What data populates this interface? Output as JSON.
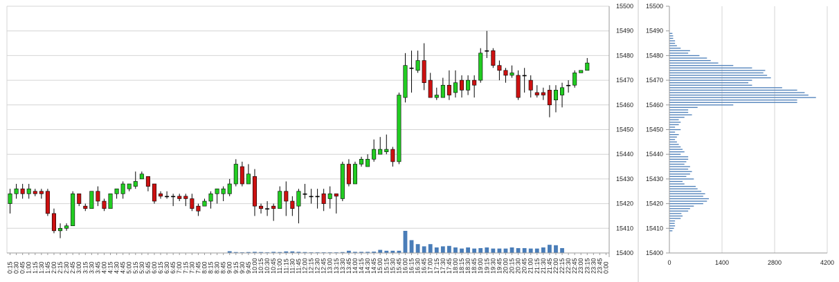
{
  "chart_data": [
    {
      "type": "candlestick",
      "title": "",
      "ylim": [
        15400,
        15500
      ],
      "y_ticks": [
        15400,
        15410,
        15420,
        15430,
        15440,
        15450,
        15460,
        15470,
        15480,
        15490,
        15500
      ],
      "grid": true,
      "colors": {
        "up": "#22cc22",
        "down": "#cc1111",
        "volume": "#4a7db8",
        "grid": "#d4d4d4"
      },
      "x_labels": [
        "0:15",
        "0:30",
        "0:45",
        "1:00",
        "1:15",
        "1:30",
        "1:45",
        "2:00",
        "2:15",
        "2:30",
        "2:45",
        "3:00",
        "3:15",
        "3:30",
        "3:45",
        "4:00",
        "4:15",
        "4:30",
        "4:45",
        "5:00",
        "5:15",
        "5:30",
        "5:45",
        "6:00",
        "6:15",
        "6:30",
        "6:45",
        "7:00",
        "7:15",
        "7:30",
        "7:45",
        "8:00",
        "8:15",
        "8:30",
        "8:45",
        "9:00",
        "9:15",
        "9:30",
        "9:45",
        "10:00",
        "10:15",
        "10:30",
        "10:45",
        "11:00",
        "11:15",
        "11:30",
        "11:45",
        "12:00",
        "12:15",
        "12:30",
        "12:45",
        "13:00",
        "13:15",
        "13:30",
        "13:45",
        "14:00",
        "14:15",
        "14:30",
        "14:45",
        "15:00",
        "15:15",
        "15:30",
        "15:45",
        "16:00",
        "16:15",
        "16:30",
        "16:45",
        "17:00",
        "17:15",
        "17:30",
        "17:45",
        "18:00",
        "18:15",
        "18:30",
        "18:45",
        "19:00",
        "19:15",
        "19:30",
        "19:45",
        "20:00",
        "20:15",
        "20:30",
        "20:45",
        "21:00",
        "21:15",
        "21:30",
        "21:45",
        "22:00",
        "22:15",
        "22:30",
        "22:45",
        "23:00",
        "23:15",
        "23:30",
        "23:45",
        "0:00"
      ],
      "candles": [
        [
          15420,
          15424,
          15416,
          15426
        ],
        [
          15424,
          15426,
          15422,
          15428
        ],
        [
          15426,
          15424,
          15422,
          15428
        ],
        [
          15424,
          15426,
          15422,
          15428
        ],
        [
          15425,
          15424,
          15423,
          15426
        ],
        [
          15425,
          15424,
          15422,
          15426
        ],
        [
          15425,
          15416,
          15415,
          15426
        ],
        [
          15416,
          15409,
          15408,
          15418
        ],
        [
          15409,
          15410,
          15406,
          15412
        ],
        [
          15410,
          15411,
          15409,
          15412
        ],
        [
          15411,
          15424,
          15411,
          15425
        ],
        [
          15424,
          15420,
          15419,
          15424
        ],
        [
          15419,
          15418,
          15417,
          15420
        ],
        [
          15418,
          15425,
          15418,
          15425
        ],
        [
          15425,
          15421,
          15419,
          15427
        ],
        [
          15421,
          15418,
          15417,
          15422
        ],
        [
          15418,
          15424,
          15418,
          15424
        ],
        [
          15424,
          15426,
          15422,
          15426
        ],
        [
          15424,
          15428,
          15422,
          15429
        ],
        [
          15426,
          15428,
          15425,
          15428
        ],
        [
          15427,
          15429,
          15426,
          15433
        ],
        [
          15430,
          15432,
          15430,
          15433
        ],
        [
          15431,
          15427,
          15425,
          15431
        ],
        [
          15428,
          15421,
          15420,
          15428
        ],
        [
          15424,
          15423,
          15422,
          15425
        ],
        [
          15423,
          15423,
          15422,
          15425
        ],
        [
          15423,
          15423,
          15419,
          15424
        ],
        [
          15423,
          15422,
          15421,
          15424
        ],
        [
          15423,
          15422,
          15419,
          15424
        ],
        [
          15422,
          15418,
          15417,
          15424
        ],
        [
          15419,
          15417,
          15415,
          15420
        ],
        [
          15419,
          15421,
          15419,
          15422
        ],
        [
          15421,
          15424,
          15418,
          15425
        ],
        [
          15424,
          15426,
          15420,
          15426
        ],
        [
          15424,
          15426,
          15421,
          15427
        ],
        [
          15424,
          15428,
          15423,
          15430
        ],
        [
          15428,
          15436,
          15427,
          15438
        ],
        [
          15435,
          15428,
          15427,
          15437
        ],
        [
          15428,
          15432,
          15428,
          15436
        ],
        [
          15431,
          15419,
          15415,
          15434
        ],
        [
          15419,
          15418,
          15416,
          15420
        ],
        [
          15418,
          15418,
          15415,
          15421
        ],
        [
          15419,
          15418,
          15413,
          15420
        ],
        [
          15418,
          15425,
          15418,
          15427
        ],
        [
          15425,
          15421,
          15415,
          15429
        ],
        [
          15421,
          15418,
          15415,
          15423
        ],
        [
          15419,
          15425,
          15412,
          15426
        ],
        [
          15424,
          15424,
          15422,
          15428
        ],
        [
          15423,
          15423,
          15420,
          15426
        ],
        [
          15423,
          15423,
          15418,
          15426
        ],
        [
          15424,
          15420,
          15417,
          15426
        ],
        [
          15422,
          15424,
          15418,
          15427
        ],
        [
          15424,
          15423,
          15416,
          15424
        ],
        [
          15422,
          15436,
          15421,
          15437
        ],
        [
          15436,
          15428,
          15427,
          15438
        ],
        [
          15428,
          15436,
          15428,
          15437
        ],
        [
          15436,
          15438,
          15435,
          15439
        ],
        [
          15435,
          15438,
          15435,
          15440
        ],
        [
          15438,
          15442,
          15437,
          15446
        ],
        [
          15440,
          15442,
          15440,
          15447
        ],
        [
          15441,
          15442,
          15440,
          15448
        ],
        [
          15442,
          15437,
          15435,
          15443
        ],
        [
          15437,
          15464,
          15436,
          15465
        ],
        [
          15463,
          15476,
          15461,
          15481
        ],
        [
          15475,
          15475,
          15465,
          15482
        ],
        [
          15474,
          15478,
          15473,
          15482
        ],
        [
          15478,
          15469,
          15466,
          15485
        ],
        [
          15470,
          15463,
          15463,
          15473
        ],
        [
          15463,
          15464,
          15462,
          15467
        ],
        [
          15463,
          15468,
          15463,
          15471
        ],
        [
          15468,
          15464,
          15462,
          15474
        ],
        [
          15465,
          15469,
          15463,
          15474
        ],
        [
          15470,
          15466,
          15463,
          15472
        ],
        [
          15466,
          15470,
          15464,
          15472
        ],
        [
          15470,
          15468,
          15463,
          15472
        ],
        [
          15470,
          15481,
          15469,
          15483
        ],
        [
          15482,
          15482,
          15479,
          15490
        ],
        [
          15482,
          15476,
          15475,
          15483
        ],
        [
          15476,
          15474,
          15470,
          15478
        ],
        [
          15474,
          15472,
          15469,
          15475
        ],
        [
          15472,
          15473,
          15471,
          15476
        ],
        [
          15472,
          15463,
          15462,
          15474
        ],
        [
          15472,
          15472,
          15465,
          15475
        ],
        [
          15470,
          15466,
          15463,
          15472
        ],
        [
          15465,
          15464,
          15463,
          15468
        ],
        [
          15465,
          15464,
          15462,
          15467
        ],
        [
          15466,
          15460,
          15455,
          15468
        ],
        [
          15462,
          15466,
          15457,
          15468
        ],
        [
          15464,
          15467,
          15459,
          15469
        ],
        [
          15468,
          15468,
          15465,
          15470
        ],
        [
          15468,
          15473,
          15467,
          15474
        ],
        [
          15473,
          15474,
          15474,
          15474
        ],
        [
          15474,
          15477,
          15474,
          15479
        ]
      ],
      "volume": [
        0,
        0,
        0,
        0,
        0,
        0,
        0,
        0,
        0,
        0,
        0,
        0,
        0,
        0,
        0,
        0,
        0,
        0,
        0,
        0,
        0,
        0,
        0,
        0,
        0,
        0,
        0,
        0,
        0,
        0,
        0,
        0,
        0,
        0,
        0,
        0.08,
        0.04,
        0.03,
        0.04,
        0.05,
        0.04,
        0.03,
        0.05,
        0.04,
        0.07,
        0.07,
        0.05,
        0.04,
        0.03,
        0.03,
        0.03,
        0.03,
        0.03,
        0.04,
        0.1,
        0.05,
        0.05,
        0.05,
        0.06,
        0.14,
        0.1,
        0.1,
        0.1,
        1.0,
        0.58,
        0.4,
        0.3,
        0.4,
        0.25,
        0.3,
        0.32,
        0.25,
        0.2,
        0.25,
        0.2,
        0.22,
        0.25,
        0.2,
        0.2,
        0.2,
        0.25,
        0.22,
        0.22,
        0.2,
        0.2,
        0.25,
        0.37,
        0.35,
        0.22,
        0,
        0,
        0,
        0,
        0,
        0,
        0
      ]
    },
    {
      "type": "bar",
      "orientation": "horizontal",
      "title": "",
      "ylim": [
        15400,
        15500
      ],
      "y_ticks": [
        15400,
        15410,
        15420,
        15430,
        15440,
        15450,
        15460,
        15470,
        15480,
        15490,
        15500
      ],
      "xlim": [
        0,
        4200
      ],
      "x_ticks": [
        0,
        1400,
        2800,
        4200
      ],
      "grid": true,
      "color": "#4a7db8",
      "bars": [
        [
          15409,
          80
        ],
        [
          15410,
          120
        ],
        [
          15411,
          150
        ],
        [
          15412,
          140
        ],
        [
          15413,
          150
        ],
        [
          15414,
          300
        ],
        [
          15415,
          350
        ],
        [
          15416,
          320
        ],
        [
          15417,
          500
        ],
        [
          15418,
          550
        ],
        [
          15419,
          650
        ],
        [
          15420,
          900
        ],
        [
          15421,
          1000
        ],
        [
          15422,
          1050
        ],
        [
          15423,
          900
        ],
        [
          15424,
          950
        ],
        [
          15425,
          850
        ],
        [
          15426,
          750
        ],
        [
          15427,
          700
        ],
        [
          15428,
          400
        ],
        [
          15429,
          350
        ],
        [
          15430,
          650
        ],
        [
          15431,
          450
        ],
        [
          15432,
          550
        ],
        [
          15433,
          600
        ],
        [
          15434,
          500
        ],
        [
          15435,
          550
        ],
        [
          15436,
          400
        ],
        [
          15437,
          450
        ],
        [
          15438,
          500
        ],
        [
          15439,
          500
        ],
        [
          15440,
          300
        ],
        [
          15441,
          400
        ],
        [
          15442,
          350
        ],
        [
          15443,
          300
        ],
        [
          15444,
          250
        ],
        [
          15445,
          200
        ],
        [
          15446,
          150
        ],
        [
          15447,
          200
        ],
        [
          15448,
          250
        ],
        [
          15449,
          150
        ],
        [
          15450,
          300
        ],
        [
          15451,
          150
        ],
        [
          15452,
          250
        ],
        [
          15453,
          300
        ],
        [
          15454,
          250
        ],
        [
          15455,
          400
        ],
        [
          15456,
          600
        ],
        [
          15457,
          500
        ],
        [
          15458,
          500
        ],
        [
          15459,
          750
        ],
        [
          15460,
          1700
        ],
        [
          15461,
          3400
        ],
        [
          15462,
          3400
        ],
        [
          15463,
          3900
        ],
        [
          15464,
          3700
        ],
        [
          15465,
          3600
        ],
        [
          15466,
          3400
        ],
        [
          15467,
          3000
        ],
        [
          15468,
          2200
        ],
        [
          15469,
          2100
        ],
        [
          15470,
          2200
        ],
        [
          15471,
          2700
        ],
        [
          15472,
          2600
        ],
        [
          15473,
          2500
        ],
        [
          15474,
          2550
        ],
        [
          15475,
          2200
        ],
        [
          15476,
          1700
        ],
        [
          15477,
          1300
        ],
        [
          15478,
          1100
        ],
        [
          15479,
          1000
        ],
        [
          15480,
          800
        ],
        [
          15481,
          500
        ],
        [
          15482,
          550
        ],
        [
          15483,
          300
        ],
        [
          15484,
          200
        ],
        [
          15485,
          150
        ],
        [
          15486,
          150
        ],
        [
          15487,
          100
        ],
        [
          15488,
          100
        ],
        [
          15489,
          80
        ]
      ]
    }
  ]
}
